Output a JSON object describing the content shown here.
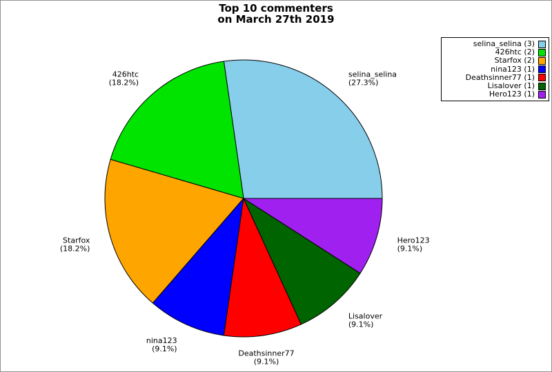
{
  "page": {
    "background": "#ffffff",
    "border_color": "#909090"
  },
  "chart_data": {
    "type": "pie",
    "title_line1": "Top 10 commenters",
    "title_line2": "on March 27th 2019",
    "total": 11,
    "start_angle_deg": 0,
    "direction": "counterclockwise",
    "grid": false,
    "legend_position": "top-right",
    "stroke_color": "#000000",
    "slices": [
      {
        "label": "selina_selina",
        "value": 3,
        "pct_label": "(27.3%)",
        "legend_label": "selina_selina (3)",
        "color": "#87CEEB"
      },
      {
        "label": "426htc",
        "value": 2,
        "pct_label": "(18.2%)",
        "legend_label": "426htc (2)",
        "color": "#00E400"
      },
      {
        "label": "Starfox",
        "value": 2,
        "pct_label": "(18.2%)",
        "legend_label": "Starfox (2)",
        "color": "#FFA500"
      },
      {
        "label": "nina123",
        "value": 1,
        "pct_label": "(9.1%)",
        "legend_label": "nina123 (1)",
        "color": "#0000FF"
      },
      {
        "label": "Deathsinner77",
        "value": 1,
        "pct_label": "(9.1%)",
        "legend_label": "Deathsinner77 (1)",
        "color": "#FF0000"
      },
      {
        "label": "Lisalover",
        "value": 1,
        "pct_label": "(9.1%)",
        "legend_label": "Lisalover (1)",
        "color": "#006400"
      },
      {
        "label": "Hero123",
        "value": 1,
        "pct_label": "(9.1%)",
        "legend_label": "Hero123 (1)",
        "color": "#A020F0"
      }
    ]
  }
}
